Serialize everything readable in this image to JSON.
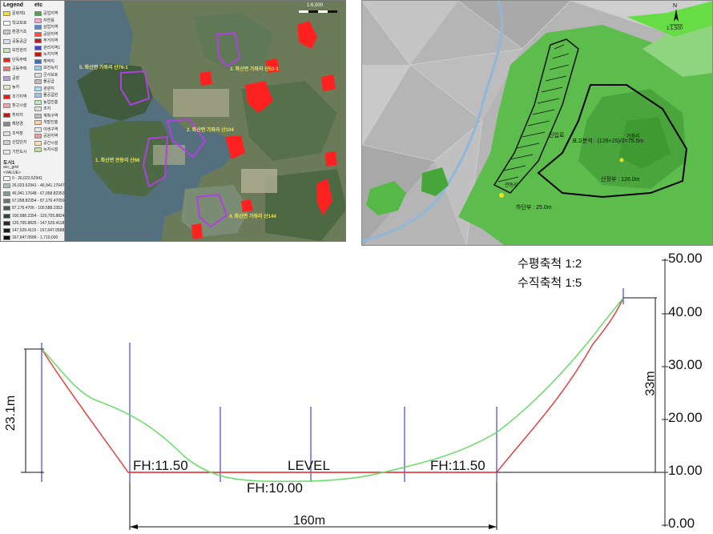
{
  "left_map": {
    "legend_title": "Legend",
    "etc_title": "etc",
    "legend_items": [
      {
        "label": "문화재1",
        "color": "#f4e21e"
      },
      {
        "label": "학교보호",
        "color": "#ffffff"
      },
      {
        "label": "환경기초",
        "color": "#c8c8c8"
      },
      {
        "label": "공동공급",
        "color": "#d4e4f4"
      },
      {
        "label": "보전관리",
        "color": "#bfe7b4"
      },
      {
        "label": "단독주택",
        "color": "#ee2222"
      },
      {
        "label": "공동주택",
        "color": "#ff6b6b"
      },
      {
        "label": "공장",
        "color": "#b49ad8"
      },
      {
        "label": "농지",
        "color": "#e8e3c8"
      },
      {
        "label": "조기지역",
        "color": "#ff1111"
      },
      {
        "label": "창고시설",
        "color": "#f5a3a3"
      },
      {
        "label": "취락지",
        "color": "#d01010"
      },
      {
        "label": "해양경",
        "color": "#888888"
      },
      {
        "label": "조작장",
        "color": "#dddddd"
      },
      {
        "label": "산업단지",
        "color": "#cccccc"
      },
      {
        "label": "기반도시",
        "color": "#e6e6e6"
      }
    ],
    "etc_items": [
      {
        "label": "공업지역",
        "color": "#4aa44a"
      },
      {
        "label": "자연용",
        "color": "#f2a6d0"
      },
      {
        "label": "상업지역",
        "color": "#5a88d8"
      },
      {
        "label": "공원지역",
        "color": "#ff4d4d"
      },
      {
        "label": "주거지역",
        "color": "#b22222"
      },
      {
        "label": "관리지역1",
        "color": "#4444cc"
      },
      {
        "label": "녹지지역",
        "color": "#cc1111"
      },
      {
        "label": "해역지",
        "color": "#3f6fb8"
      },
      {
        "label": "보전녹지",
        "color": "#99cce8"
      },
      {
        "label": "군사보호",
        "color": "#dddddd"
      },
      {
        "label": "물공급",
        "color": "#bbbbbb"
      },
      {
        "label": "관광지",
        "color": "#aaddee"
      },
      {
        "label": "물공급원",
        "color": "#9fc7e4"
      },
      {
        "label": "농업진흥",
        "color": "#c9e6c0"
      },
      {
        "label": "조지",
        "color": "#dddddd"
      },
      {
        "label": "계획구역",
        "color": "#bbbbbb"
      },
      {
        "label": "개발진흥",
        "color": "#ffd0a0"
      },
      {
        "label": "야생구역",
        "color": "#e8e8e8"
      },
      {
        "label": "공원지역",
        "color": "#e4a0a0"
      },
      {
        "label": "공간시설",
        "color": "#ffe0b0"
      },
      {
        "label": "녹지시설",
        "color": "#c0e0a0"
      }
    ],
    "grid_title": "도시1",
    "grid_subtitle": "acc_grid",
    "grid_value_label": "<VALUE>",
    "grid_classes": [
      {
        "label": "0 - 26,023.52941",
        "color": "#f7fbf7"
      },
      {
        "label": "26,023.52941 - 46,941.17647",
        "color": "#a9c3b3"
      },
      {
        "label": "46,941.17648 - 67,058.82353",
        "color": "#7f9c8c"
      },
      {
        "label": "67,058.82354 - 87,176.47059",
        "color": "#5e7b6c"
      },
      {
        "label": "87,176.4706 - 100,588.2353",
        "color": "#45604f"
      },
      {
        "label": "100,588.2354 - 120,705.8824",
        "color": "#2e4638"
      },
      {
        "label": "120,705.8825 - 147,529.4118",
        "color": "#1f2f27"
      },
      {
        "label": "147,529.4119 - 167,647.0588",
        "color": "#151d19"
      },
      {
        "label": "167,647.0589 - 1,710,000",
        "color": "#0a0d0b"
      }
    ],
    "scale_text": "1:6,000",
    "sites": [
      "1. 화산면 관동리 산66",
      "2. 화산면 가좌리 산104",
      "3. 화산면 가좌리 산53-1",
      "4. 화산면 가좌리 산144",
      "5. 화산면 가좌리 산76-1"
    ]
  },
  "right_map": {
    "scale_text": "1:1,500",
    "north_label": "N",
    "annotation_avg": "표고분석 : (126+25)/2=75.5m",
    "annotation_top": "산정부 : 126.0m",
    "annotation_bottom": "하단부 : 25.0m",
    "place_label_1": "가좌리",
    "place_label_2": "진입로",
    "place_label_3": "관동리"
  },
  "section": {
    "scale_horizontal": "수평축척 1:2",
    "scale_vertical": "수직축척 1:5",
    "fh_left": "FH:11.50",
    "fh_right": "FH:11.50",
    "fh_bottom": "FH:10.00",
    "level_label": "LEVEL",
    "width_dim": "160m",
    "left_height_dim": "23.1m",
    "right_height_dim": "33m",
    "axis_ticks": [
      "50.00",
      "40.00",
      "30.00",
      "20.00",
      "10.00",
      "0.00"
    ],
    "colors": {
      "original_ground": "#e84040",
      "design_ground": "#66dd66",
      "guide_lines": "#4444dd",
      "level_line": "#e84040"
    }
  }
}
